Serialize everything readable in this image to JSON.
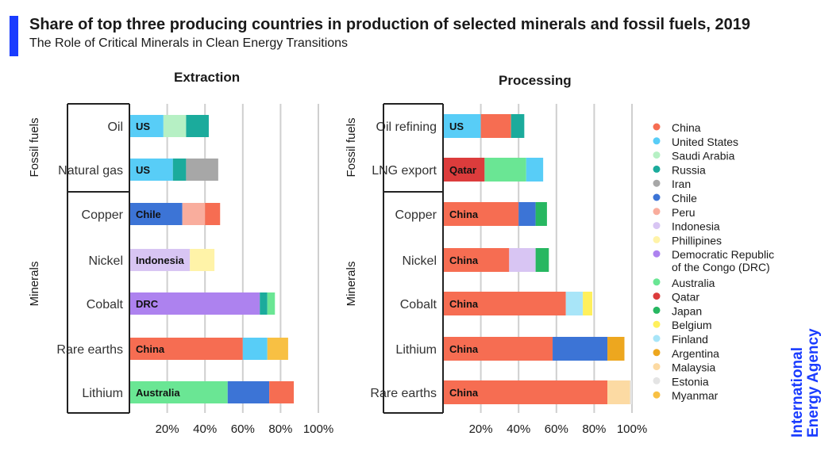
{
  "header": {
    "title": "Share of top three producing countries in production of selected minerals and fossil fuels, 2019",
    "subtitle": "The Role of Critical Minerals in Clean Energy Transitions"
  },
  "brand": {
    "line1": "International",
    "line2": "Energy Agency"
  },
  "colors": {
    "accent": "#1a3cff"
  },
  "chart_data": {
    "type": "bar",
    "orientation": "horizontal",
    "stacked": true,
    "xlim": [
      0,
      100
    ],
    "x_ticks": [
      "20%",
      "40%",
      "60%",
      "80%",
      "100%"
    ],
    "grid": true,
    "legend_position": "right",
    "legend": [
      {
        "name": "China",
        "color": "#f66d52"
      },
      {
        "name": "United States",
        "color": "#58cdf7"
      },
      {
        "name": "Saudi Arabia",
        "color": "#b6f0c4"
      },
      {
        "name": "Russia",
        "color": "#1bab9c"
      },
      {
        "name": "Iran",
        "color": "#a7a7a7"
      },
      {
        "name": "Chile",
        "color": "#3c74d6"
      },
      {
        "name": "Peru",
        "color": "#f9ad9d"
      },
      {
        "name": "Indonesia",
        "color": "#d8c5f3"
      },
      {
        "name": "Phillipines",
        "color": "#fff3a8"
      },
      {
        "name": "Democratic Republic of the Congo (DRC)",
        "lines": [
          "Democratic Republic",
          "of the Congo (DRC)"
        ],
        "color": "#ad82ef"
      },
      {
        "name": "Australia",
        "color": "#6ae694"
      },
      {
        "name": "Qatar",
        "color": "#dc3c3c"
      },
      {
        "name": "Japan",
        "color": "#27b761"
      },
      {
        "name": "Belgium",
        "color": "#fff05c"
      },
      {
        "name": "Finland",
        "color": "#a8e5f8"
      },
      {
        "name": "Argentina",
        "color": "#eda71f"
      },
      {
        "name": "Malaysia",
        "color": "#fcdaa3"
      },
      {
        "name": "Estonia",
        "color": "#e4e4e4"
      },
      {
        "name": "Myanmar",
        "color": "#f8c043"
      }
    ],
    "panels": [
      {
        "title": "Extraction",
        "groups": [
          {
            "label": "Fossil fuels",
            "rows": [
              0,
              1
            ]
          },
          {
            "label": "Minerals",
            "rows": [
              2,
              3,
              4,
              5,
              6
            ]
          }
        ],
        "rows": [
          {
            "label": "Oil",
            "bar_label": "US",
            "segments": [
              {
                "country": "United States",
                "value": 18
              },
              {
                "country": "Saudi Arabia",
                "value": 12
              },
              {
                "country": "Russia",
                "value": 12
              }
            ]
          },
          {
            "label": "Natural gas",
            "bar_label": "US",
            "segments": [
              {
                "country": "United States",
                "value": 23
              },
              {
                "country": "Russia",
                "value": 7
              },
              {
                "country": "Iran",
                "value": 17
              }
            ]
          },
          {
            "label": "Copper",
            "bar_label": "Chile",
            "segments": [
              {
                "country": "Chile",
                "value": 28
              },
              {
                "country": "Peru",
                "value": 12
              },
              {
                "country": "China",
                "value": 8
              }
            ]
          },
          {
            "label": "Nickel",
            "bar_label": "Indonesia",
            "segments": [
              {
                "country": "Indonesia",
                "value": 32
              },
              {
                "country": "Phillipines",
                "value": 13
              }
            ]
          },
          {
            "label": "Cobalt",
            "bar_label": "DRC",
            "segments": [
              {
                "country": "Democratic Republic of the Congo (DRC)",
                "value": 69
              },
              {
                "country": "Russia",
                "value": 4
              },
              {
                "country": "Australia",
                "value": 4
              }
            ]
          },
          {
            "label": "Rare earths",
            "bar_label": "China",
            "segments": [
              {
                "country": "China",
                "value": 60
              },
              {
                "country": "United States",
                "value": 13
              },
              {
                "country": "Myanmar",
                "value": 11
              }
            ]
          },
          {
            "label": "Lithium",
            "bar_label": "Australia",
            "segments": [
              {
                "country": "Australia",
                "value": 52
              },
              {
                "country": "Chile",
                "value": 22
              },
              {
                "country": "China",
                "value": 13
              }
            ]
          }
        ]
      },
      {
        "title": "Processing",
        "groups": [
          {
            "label": "Fossil fuels",
            "rows": [
              0,
              1
            ]
          },
          {
            "label": "Minerals",
            "rows": [
              2,
              3,
              4,
              5,
              6
            ]
          }
        ],
        "rows": [
          {
            "label": "Oil refining",
            "bar_label": "US",
            "segments": [
              {
                "country": "United States",
                "value": 20
              },
              {
                "country": "China",
                "value": 16
              },
              {
                "country": "Russia",
                "value": 7
              }
            ]
          },
          {
            "label": "LNG export",
            "bar_label": "Qatar",
            "segments": [
              {
                "country": "Qatar",
                "value": 22
              },
              {
                "country": "Australia",
                "value": 22
              },
              {
                "country": "United States",
                "value": 9
              }
            ]
          },
          {
            "label": "Copper",
            "bar_label": "China",
            "segments": [
              {
                "country": "China",
                "value": 40
              },
              {
                "country": "Chile",
                "value": 9
              },
              {
                "country": "Japan",
                "value": 6
              }
            ]
          },
          {
            "label": "Nickel",
            "bar_label": "China",
            "segments": [
              {
                "country": "China",
                "value": 35
              },
              {
                "country": "Indonesia",
                "value": 14
              },
              {
                "country": "Japan",
                "value": 7
              }
            ]
          },
          {
            "label": "Cobalt",
            "bar_label": "China",
            "segments": [
              {
                "country": "China",
                "value": 65
              },
              {
                "country": "Finland",
                "value": 9
              },
              {
                "country": "Belgium",
                "value": 5
              }
            ]
          },
          {
            "label": "Lithium",
            "bar_label": "China",
            "segments": [
              {
                "country": "China",
                "value": 58
              },
              {
                "country": "Chile",
                "value": 29
              },
              {
                "country": "Argentina",
                "value": 9
              }
            ]
          },
          {
            "label": "Rare earths",
            "bar_label": "China",
            "segments": [
              {
                "country": "China",
                "value": 87
              },
              {
                "country": "Malaysia",
                "value": 12
              },
              {
                "country": "Estonia",
                "value": 1
              }
            ]
          }
        ]
      }
    ]
  }
}
